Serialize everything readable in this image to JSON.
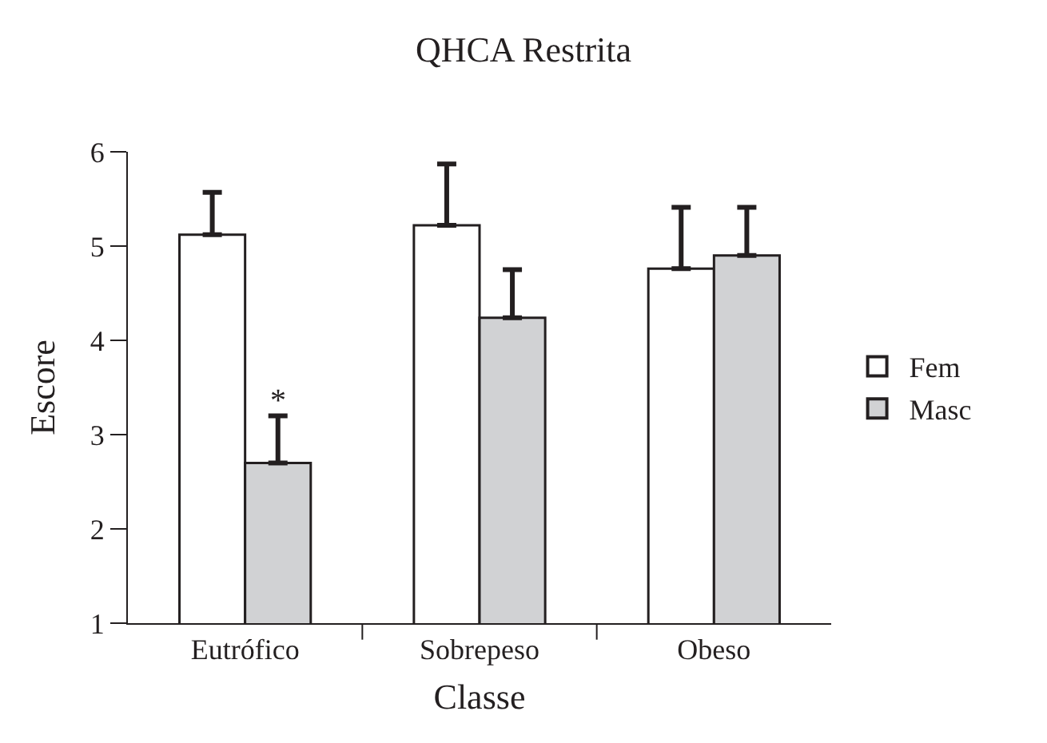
{
  "chart_data": {
    "type": "bar",
    "title": "QHCA Restrita",
    "xlabel": "Classe",
    "ylabel": "Escore",
    "categories": [
      "Eutrófico",
      "Sobrepeso",
      "Obeso"
    ],
    "series": [
      {
        "name": "Fem",
        "color": "#ffffff",
        "values": [
          5.12,
          5.22,
          4.76
        ],
        "errors": [
          [
            5.12,
            5.57
          ],
          [
            5.22,
            5.87
          ],
          [
            4.76,
            5.41
          ]
        ]
      },
      {
        "name": "Masc",
        "color": "#d1d2d4",
        "values": [
          2.7,
          4.24,
          4.9
        ],
        "errors": [
          [
            2.7,
            3.2
          ],
          [
            4.24,
            4.75
          ],
          [
            4.9,
            5.41
          ]
        ]
      }
    ],
    "annotations": [
      {
        "text": "*",
        "x": "Eutrófico",
        "y": 3.35
      }
    ],
    "ylim": [
      1,
      6
    ],
    "yticks": [
      1,
      2,
      3,
      4,
      5,
      6
    ],
    "legend": "right"
  }
}
